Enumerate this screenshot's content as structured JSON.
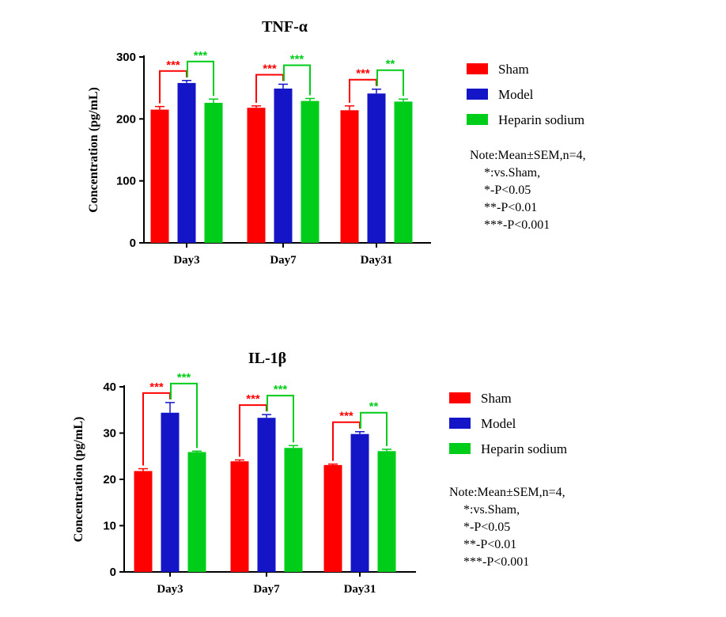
{
  "colors": {
    "sham": "#ff0000",
    "model": "#1515c8",
    "heparin": "#00cc1a"
  },
  "legend": [
    {
      "label": "Sham",
      "color": "#ff0000"
    },
    {
      "label": "Model",
      "color": "#1515c8"
    },
    {
      "label": "Heparin sodium",
      "color": "#00cc1a"
    }
  ],
  "note": {
    "lines": [
      "Note:Mean±SEM,n=4,",
      "*:vs.Sham,",
      "*-P<0.05",
      "**-P<0.01",
      "***-P<0.001"
    ]
  },
  "chart_data": [
    {
      "type": "bar",
      "title": "TNF-α",
      "ylabel": "Concentration (pg/mL)",
      "xlabel": "",
      "categories": [
        "Day3",
        "Day7",
        "Day31"
      ],
      "ylim": [
        0,
        300
      ],
      "yticks": [
        0,
        100,
        200,
        300
      ],
      "series": [
        {
          "name": "Sham",
          "color": "#ff0000",
          "values": [
            215,
            218,
            214
          ],
          "errors": [
            5,
            3,
            7
          ]
        },
        {
          "name": "Model",
          "color": "#1515c8",
          "values": [
            258,
            249,
            241
          ],
          "errors": [
            4,
            7,
            7
          ]
        },
        {
          "name": "Heparin sodium",
          "color": "#00cc1a",
          "values": [
            226,
            229,
            228
          ],
          "errors": [
            6,
            4,
            4
          ]
        }
      ],
      "significance": [
        {
          "category": "Day3",
          "pair": [
            "Sham",
            "Model"
          ],
          "label": "***",
          "color": "#ff0000"
        },
        {
          "category": "Day3",
          "pair": [
            "Model",
            "Heparin sodium"
          ],
          "label": "***",
          "color": "#00cc1a"
        },
        {
          "category": "Day7",
          "pair": [
            "Sham",
            "Model"
          ],
          "label": "***",
          "color": "#ff0000"
        },
        {
          "category": "Day7",
          "pair": [
            "Model",
            "Heparin sodium"
          ],
          "label": "***",
          "color": "#00cc1a"
        },
        {
          "category": "Day31",
          "pair": [
            "Sham",
            "Model"
          ],
          "label": "***",
          "color": "#ff0000"
        },
        {
          "category": "Day31",
          "pair": [
            "Model",
            "Heparin sodium"
          ],
          "label": "**",
          "color": "#00cc1a"
        }
      ]
    },
    {
      "type": "bar",
      "title": "IL-1β",
      "ylabel": "Concentration (pg/mL)",
      "xlabel": "",
      "categories": [
        "Day3",
        "Day7",
        "Day31"
      ],
      "ylim": [
        0,
        40
      ],
      "yticks": [
        0,
        10,
        20,
        30,
        40
      ],
      "series": [
        {
          "name": "Sham",
          "color": "#ff0000",
          "values": [
            21.8,
            23.9,
            23.1
          ],
          "errors": [
            0.5,
            0.3,
            0.2
          ]
        },
        {
          "name": "Model",
          "color": "#1515c8",
          "values": [
            34.4,
            33.3,
            29.8
          ],
          "errors": [
            2.2,
            0.7,
            0.5
          ]
        },
        {
          "name": "Heparin sodium",
          "color": "#00cc1a",
          "values": [
            25.9,
            26.8,
            26.1
          ],
          "errors": [
            0.2,
            0.5,
            0.4
          ]
        }
      ],
      "significance": [
        {
          "category": "Day3",
          "pair": [
            "Sham",
            "Model"
          ],
          "label": "***",
          "color": "#ff0000"
        },
        {
          "category": "Day3",
          "pair": [
            "Model",
            "Heparin sodium"
          ],
          "label": "***",
          "color": "#00cc1a"
        },
        {
          "category": "Day7",
          "pair": [
            "Sham",
            "Model"
          ],
          "label": "***",
          "color": "#ff0000"
        },
        {
          "category": "Day7",
          "pair": [
            "Model",
            "Heparin sodium"
          ],
          "label": "***",
          "color": "#00cc1a"
        },
        {
          "category": "Day31",
          "pair": [
            "Sham",
            "Model"
          ],
          "label": "***",
          "color": "#ff0000"
        },
        {
          "category": "Day31",
          "pair": [
            "Model",
            "Heparin sodium"
          ],
          "label": "**",
          "color": "#00cc1a"
        }
      ]
    }
  ]
}
